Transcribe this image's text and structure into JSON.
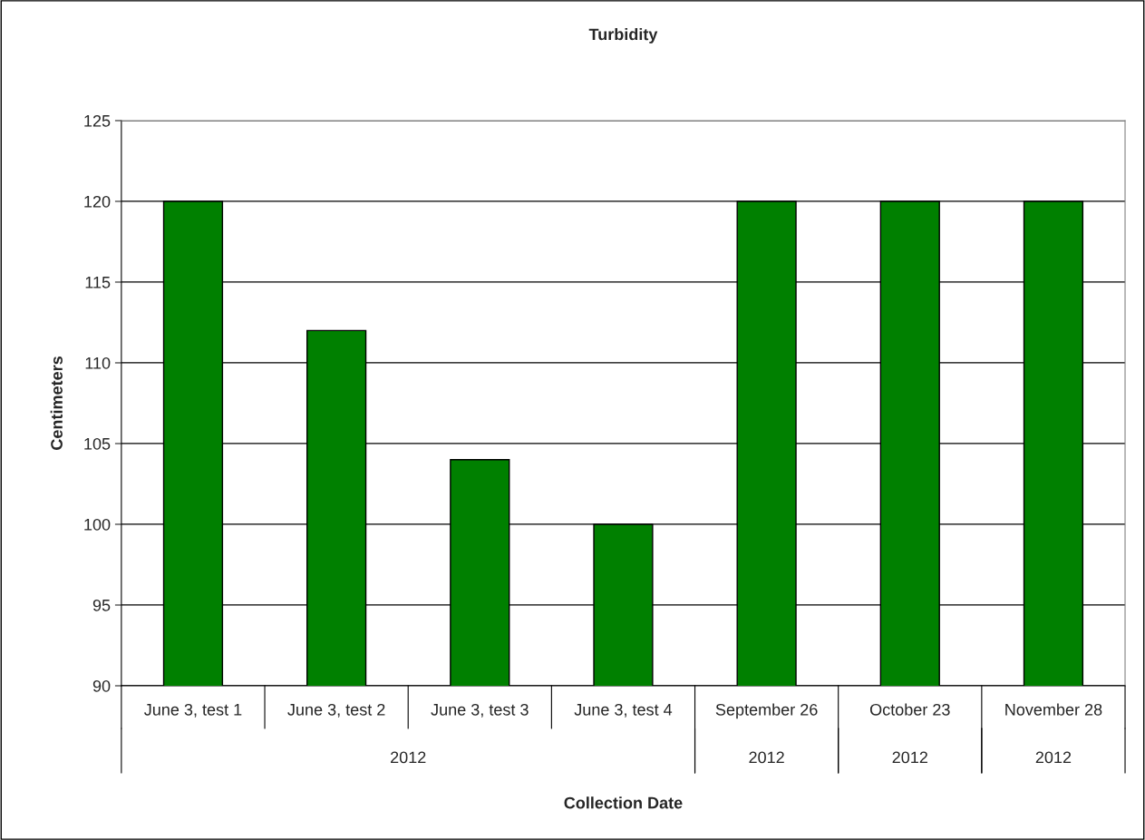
{
  "chart_data": {
    "type": "bar",
    "title": "Turbidity",
    "xlabel": "Collection Date",
    "ylabel": "Centimeters",
    "categories": [
      "June 3, test 1",
      "June 3, test 2",
      "June 3, test 3",
      "June 3, test 4",
      "September 26",
      "October 23",
      "November 28"
    ],
    "values": [
      120,
      112,
      104,
      100,
      120,
      120,
      120
    ],
    "color": "#008000",
    "ylim": [
      90,
      125
    ],
    "yticks": [
      90,
      95,
      100,
      105,
      110,
      115,
      120,
      125
    ],
    "grid": "y",
    "annotations": [
      "2012",
      "2012",
      "2012",
      "2012"
    ]
  }
}
